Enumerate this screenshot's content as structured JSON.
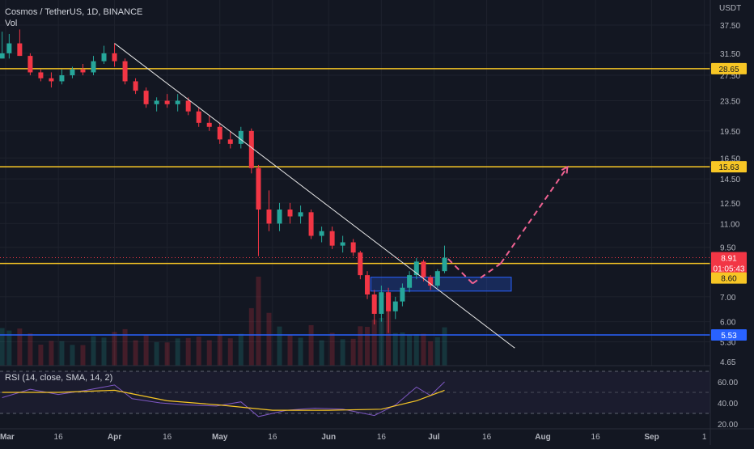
{
  "header": {
    "symbol": "Cosmos / TetherUS, 1D, BINANCE",
    "volume_label": "Vol",
    "currency": "USDT"
  },
  "price_axis": {
    "scale": "log",
    "ticks": [
      "37.50",
      "31.50",
      "27.50",
      "23.50",
      "19.50",
      "16.50",
      "14.50",
      "12.50",
      "11.00",
      "9.50",
      "7.00",
      "6.00",
      "5.30",
      "4.65"
    ]
  },
  "time_axis": {
    "ticks": [
      "Mar",
      "16",
      "Apr",
      "16",
      "May",
      "16",
      "Jun",
      "16",
      "Jul",
      "16",
      "Aug",
      "16",
      "Sep",
      "1"
    ]
  },
  "levels": {
    "resistance_high": {
      "value": "28.65",
      "color": "#f7c625"
    },
    "resistance_mid": {
      "value": "15.63",
      "color": "#f7c625"
    },
    "current_price": {
      "value": "8.91",
      "countdown": "01:05:43",
      "color": "#f23645"
    },
    "support": {
      "value": "8.60",
      "color": "#f7c625"
    },
    "low_support": {
      "value": "5.53",
      "color": "#2962ff"
    }
  },
  "rsi": {
    "label": "RSI (14, close, SMA, 14, 2)",
    "ticks": [
      "60.00",
      "40.00",
      "20.00"
    ],
    "upper_band": 70,
    "lower_band": 30,
    "line_color": "#7e57c2",
    "sma_color": "#f7c625"
  },
  "colors": {
    "up": "#26a69a",
    "down": "#f23645",
    "trendline": "#e6e6e6",
    "projection": "#f06292",
    "zone_fill": "#2962ff"
  },
  "chart_data": {
    "type": "candlestick",
    "scale": "log",
    "ylim": [
      4.65,
      40.0
    ],
    "horizontal_levels": [
      28.65,
      15.63,
      8.6,
      5.53
    ],
    "last_price": 8.91,
    "trendline": [
      {
        "x": "Apr 01",
        "y": 33.5
      },
      {
        "x": "Jul 24",
        "y": 5.1
      }
    ],
    "demand_zone": {
      "x_start": "Jun 13",
      "x_end": "Jul 23",
      "y_low": 7.25,
      "y_high": 7.9
    },
    "projection_path": [
      {
        "x": "Jul 05",
        "y": 8.85
      },
      {
        "x": "Jul 12",
        "y": 7.6
      },
      {
        "x": "Jul 20",
        "y": 8.6
      },
      {
        "x": "Aug 08",
        "y": 15.6
      }
    ],
    "candles": [
      {
        "x": "Feb 28",
        "o": 30.5,
        "h": 36.0,
        "l": 30.5,
        "c": 31.5
      },
      {
        "x": "Mar 02",
        "o": 31.5,
        "h": 35.5,
        "l": 30.5,
        "c": 33.5
      },
      {
        "x": "Mar 05",
        "o": 33.5,
        "h": 36.5,
        "l": 31.0,
        "c": 31.0
      },
      {
        "x": "Mar 08",
        "o": 31.0,
        "h": 31.5,
        "l": 27.5,
        "c": 28.0
      },
      {
        "x": "Mar 11",
        "o": 28.0,
        "h": 28.5,
        "l": 26.5,
        "c": 27.0
      },
      {
        "x": "Mar 14",
        "o": 27.0,
        "h": 28.0,
        "l": 25.5,
        "c": 26.5
      },
      {
        "x": "Mar 17",
        "o": 26.5,
        "h": 28.5,
        "l": 26.0,
        "c": 27.5
      },
      {
        "x": "Mar 20",
        "o": 27.5,
        "h": 29.0,
        "l": 27.0,
        "c": 28.5
      },
      {
        "x": "Mar 23",
        "o": 28.5,
        "h": 29.5,
        "l": 27.5,
        "c": 28.0
      },
      {
        "x": "Mar 26",
        "o": 28.0,
        "h": 31.0,
        "l": 27.5,
        "c": 30.0
      },
      {
        "x": "Mar 29",
        "o": 30.0,
        "h": 33.0,
        "l": 29.5,
        "c": 31.5
      },
      {
        "x": "Apr 01",
        "o": 31.5,
        "h": 33.5,
        "l": 29.0,
        "c": 30.0
      },
      {
        "x": "Apr 04",
        "o": 30.0,
        "h": 30.5,
        "l": 26.0,
        "c": 26.5
      },
      {
        "x": "Apr 07",
        "o": 26.5,
        "h": 27.0,
        "l": 24.5,
        "c": 25.0
      },
      {
        "x": "Apr 10",
        "o": 25.0,
        "h": 25.5,
        "l": 22.5,
        "c": 23.0
      },
      {
        "x": "Apr 13",
        "o": 23.0,
        "h": 24.0,
        "l": 22.0,
        "c": 23.5
      },
      {
        "x": "Apr 16",
        "o": 23.5,
        "h": 24.5,
        "l": 22.5,
        "c": 23.0
      },
      {
        "x": "Apr 19",
        "o": 23.0,
        "h": 24.5,
        "l": 22.0,
        "c": 23.5
      },
      {
        "x": "Apr 22",
        "o": 23.5,
        "h": 24.0,
        "l": 21.5,
        "c": 22.0
      },
      {
        "x": "Apr 25",
        "o": 22.0,
        "h": 22.5,
        "l": 20.0,
        "c": 20.5
      },
      {
        "x": "Apr 28",
        "o": 20.5,
        "h": 21.5,
        "l": 19.5,
        "c": 20.0
      },
      {
        "x": "May 01",
        "o": 20.0,
        "h": 20.5,
        "l": 18.0,
        "c": 18.5
      },
      {
        "x": "May 04",
        "o": 18.5,
        "h": 19.5,
        "l": 17.5,
        "c": 18.0
      },
      {
        "x": "May 07",
        "o": 18.0,
        "h": 20.0,
        "l": 17.5,
        "c": 19.5
      },
      {
        "x": "May 10",
        "o": 19.5,
        "h": 19.8,
        "l": 15.0,
        "c": 15.5
      },
      {
        "x": "May 12",
        "o": 15.5,
        "h": 15.8,
        "l": 9.0,
        "c": 12.0
      },
      {
        "x": "May 15",
        "o": 12.0,
        "h": 13.5,
        "l": 10.5,
        "c": 11.0
      },
      {
        "x": "May 18",
        "o": 11.0,
        "h": 12.5,
        "l": 10.5,
        "c": 12.0
      },
      {
        "x": "May 21",
        "o": 12.0,
        "h": 12.5,
        "l": 11.0,
        "c": 11.5
      },
      {
        "x": "May 24",
        "o": 11.5,
        "h": 12.3,
        "l": 11.0,
        "c": 11.8
      },
      {
        "x": "May 27",
        "o": 11.8,
        "h": 12.0,
        "l": 10.0,
        "c": 10.2
      },
      {
        "x": "May 30",
        "o": 10.2,
        "h": 10.8,
        "l": 9.8,
        "c": 10.5
      },
      {
        "x": "Jun 02",
        "o": 10.5,
        "h": 10.8,
        "l": 9.4,
        "c": 9.6
      },
      {
        "x": "Jun 05",
        "o": 9.6,
        "h": 10.2,
        "l": 9.2,
        "c": 9.8
      },
      {
        "x": "Jun 08",
        "o": 9.8,
        "h": 10.0,
        "l": 9.0,
        "c": 9.2
      },
      {
        "x": "Jun 10",
        "o": 9.2,
        "h": 9.3,
        "l": 7.8,
        "c": 8.0
      },
      {
        "x": "Jun 12",
        "o": 8.0,
        "h": 8.2,
        "l": 6.9,
        "c": 7.1
      },
      {
        "x": "Jun 14",
        "o": 7.1,
        "h": 7.3,
        "l": 5.9,
        "c": 6.3
      },
      {
        "x": "Jun 16",
        "o": 6.3,
        "h": 7.5,
        "l": 6.0,
        "c": 7.2
      },
      {
        "x": "Jun 18",
        "o": 7.2,
        "h": 7.4,
        "l": 5.6,
        "c": 6.4
      },
      {
        "x": "Jun 20",
        "o": 6.4,
        "h": 7.0,
        "l": 6.1,
        "c": 6.8
      },
      {
        "x": "Jun 22",
        "o": 6.8,
        "h": 7.6,
        "l": 6.6,
        "c": 7.4
      },
      {
        "x": "Jun 24",
        "o": 7.4,
        "h": 8.2,
        "l": 7.2,
        "c": 8.0
      },
      {
        "x": "Jun 26",
        "o": 8.0,
        "h": 8.9,
        "l": 7.8,
        "c": 8.7
      },
      {
        "x": "Jun 28",
        "o": 8.7,
        "h": 8.8,
        "l": 7.7,
        "c": 7.9
      },
      {
        "x": "Jun 30",
        "o": 7.9,
        "h": 8.0,
        "l": 7.3,
        "c": 7.5
      },
      {
        "x": "Jul 02",
        "o": 7.5,
        "h": 8.3,
        "l": 7.4,
        "c": 8.2
      },
      {
        "x": "Jul 04",
        "o": 8.2,
        "h": 9.6,
        "l": 8.1,
        "c": 8.91
      }
    ],
    "rsi_values": [
      {
        "x": "Feb 28",
        "y": 45
      },
      {
        "x": "Mar 08",
        "y": 53
      },
      {
        "x": "Mar 16",
        "y": 48
      },
      {
        "x": "Mar 24",
        "y": 52
      },
      {
        "x": "Apr 01",
        "y": 57
      },
      {
        "x": "Apr 06",
        "y": 44
      },
      {
        "x": "Apr 14",
        "y": 40
      },
      {
        "x": "Apr 22",
        "y": 38
      },
      {
        "x": "Apr 30",
        "y": 37
      },
      {
        "x": "May 07",
        "y": 41
      },
      {
        "x": "May 12",
        "y": 27
      },
      {
        "x": "May 20",
        "y": 33
      },
      {
        "x": "May 28",
        "y": 35
      },
      {
        "x": "Jun 05",
        "y": 34
      },
      {
        "x": "Jun 14",
        "y": 28
      },
      {
        "x": "Jun 20",
        "y": 38
      },
      {
        "x": "Jun 26",
        "y": 55
      },
      {
        "x": "Jun 30",
        "y": 47
      },
      {
        "x": "Jul 04",
        "y": 60
      }
    ],
    "rsi_sma": [
      {
        "x": "Feb 28",
        "y": 50
      },
      {
        "x": "Mar 16",
        "y": 50
      },
      {
        "x": "Apr 01",
        "y": 52
      },
      {
        "x": "Apr 16",
        "y": 42
      },
      {
        "x": "May 01",
        "y": 38
      },
      {
        "x": "May 16",
        "y": 33
      },
      {
        "x": "Jun 01",
        "y": 33
      },
      {
        "x": "Jun 16",
        "y": 34
      },
      {
        "x": "Jun 26",
        "y": 42
      },
      {
        "x": "Jul 04",
        "y": 52
      }
    ]
  }
}
